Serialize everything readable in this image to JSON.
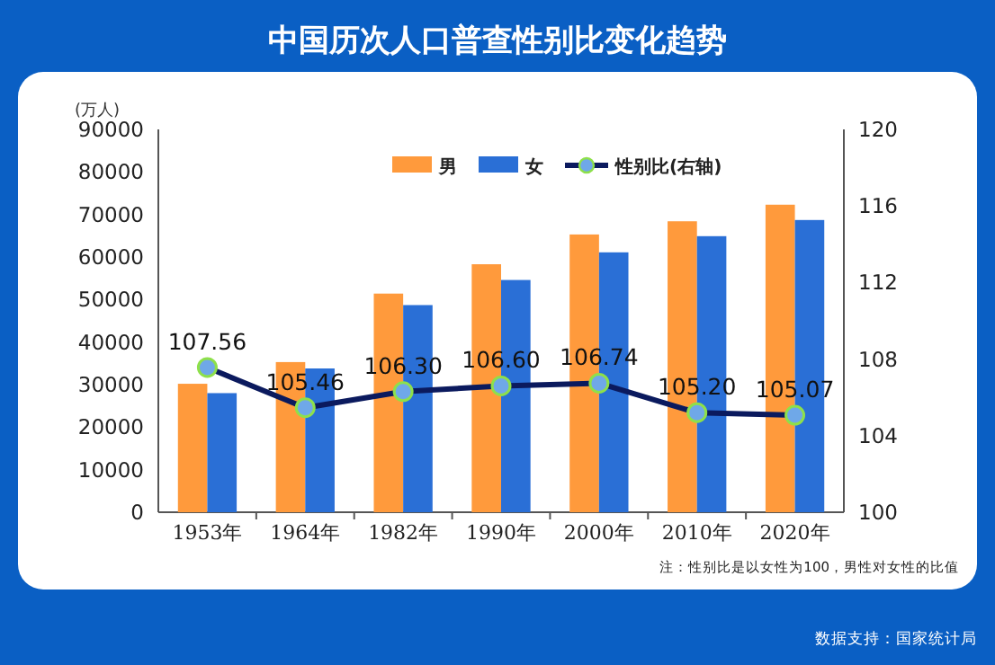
{
  "chart_data": {
    "type": "bar",
    "title": "中国历次人口普查性别比变化趋势",
    "ylabel": "(万人)",
    "categories": [
      "1953年",
      "1964年",
      "1982年",
      "1990年",
      "2000年",
      "2010年",
      "2020年"
    ],
    "series": [
      {
        "name": "男",
        "color": "#ff9a3c",
        "values": [
          30200,
          35300,
          51400,
          58300,
          65300,
          68400,
          72300
        ]
      },
      {
        "name": "女",
        "color": "#2a6fd6",
        "values": [
          28000,
          33800,
          48700,
          54600,
          61100,
          64900,
          68700
        ]
      },
      {
        "name": "性别比(右轴)",
        "type": "line",
        "axis": "y2",
        "color": "#0b1a5e",
        "values": [
          107.56,
          105.46,
          106.3,
          106.6,
          106.74,
          105.2,
          105.07
        ],
        "value_labels": [
          "107.56",
          "105.46",
          "106.30",
          "106.60",
          "106.74",
          "105.20",
          "105.07"
        ]
      }
    ],
    "ylim": [
      0,
      90000
    ],
    "yticks": [
      0,
      10000,
      20000,
      30000,
      40000,
      50000,
      60000,
      70000,
      80000,
      90000
    ],
    "y2lim": [
      100,
      120
    ],
    "y2ticks": [
      100,
      104,
      108,
      112,
      116,
      120
    ],
    "legend": "top",
    "marker": "circle",
    "grid": false,
    "annotations": [
      "注：性别比是以女性为100，男性对女性的比值",
      "数据支持：国家统计局"
    ]
  }
}
